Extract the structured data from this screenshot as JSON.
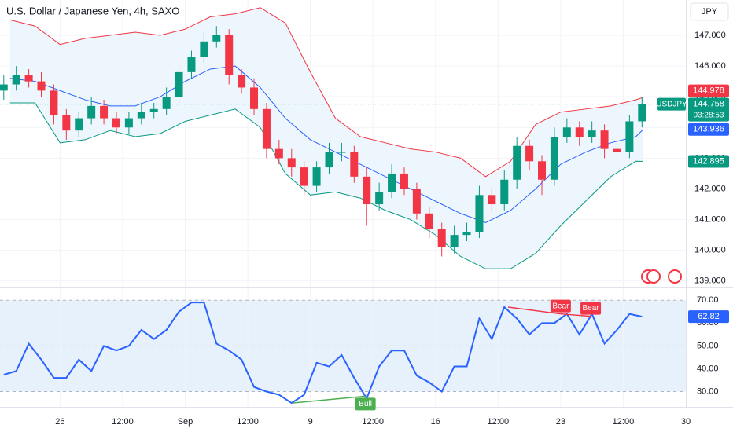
{
  "chart_data": [
    {
      "type": "candlestick",
      "title": "U.S. Dollar / Japanese Yen, 4h, SAXO",
      "symbol": "USDJPY",
      "countdown": "03:28:53",
      "currency": "JPY",
      "x": [
        -2.25,
        -1.75,
        -1.25,
        -0.75,
        -0.25,
        0.25,
        0.75,
        1.25,
        1.75,
        2.25,
        2.75,
        3.25,
        3.75,
        4.25,
        4.75,
        5.25,
        5.75,
        6.25,
        6.75,
        7.25,
        7.75,
        8.25,
        8.75,
        9.25,
        9.75,
        10.25,
        10.75,
        11.25,
        11.75,
        12.25,
        12.75,
        13.25,
        13.75,
        14.25,
        14.75,
        15.25,
        15.75,
        16.25,
        16.75,
        17.25,
        17.75,
        18.25,
        18.75,
        19.25,
        19.75,
        20.25,
        20.75,
        21.25,
        21.75,
        22.25,
        22.75,
        23.25
      ],
      "open": [
        145.2,
        145.4,
        145.7,
        145.5,
        145.2,
        144.4,
        143.9,
        144.3,
        144.7,
        144.3,
        144.0,
        144.3,
        144.5,
        144.6,
        145.0,
        145.8,
        146.3,
        146.8,
        147.0,
        145.7,
        145.3,
        144.6,
        143.3,
        143.0,
        142.7,
        142.1,
        142.7,
        143.2,
        143.2,
        142.4,
        141.5,
        141.9,
        142.5,
        142.0,
        141.2,
        140.7,
        140.1,
        140.5,
        140.6,
        141.8,
        141.5,
        142.3,
        143.4,
        142.9,
        142.3,
        143.7,
        144.0,
        143.7,
        143.9,
        143.3,
        143.2,
        144.2
      ],
      "high": [
        145.7,
        146.0,
        145.9,
        145.8,
        145.4,
        144.6,
        144.5,
        145.0,
        144.9,
        144.5,
        144.5,
        144.8,
        144.8,
        145.3,
        146.1,
        146.5,
        147.1,
        147.3,
        147.2,
        145.9,
        145.6,
        144.8,
        143.6,
        143.3,
        142.9,
        142.9,
        143.5,
        143.5,
        143.4,
        142.7,
        142.2,
        142.8,
        142.7,
        142.2,
        141.4,
        140.9,
        140.8,
        140.9,
        142.1,
        142.0,
        142.6,
        143.7,
        143.6,
        143.1,
        144.0,
        144.3,
        144.2,
        144.2,
        144.1,
        143.6,
        144.4,
        145.0
      ],
      "low": [
        144.9,
        145.2,
        145.3,
        145.0,
        144.1,
        143.6,
        143.7,
        144.1,
        144.1,
        143.8,
        143.8,
        144.1,
        144.3,
        144.4,
        144.8,
        145.6,
        146.1,
        146.6,
        145.4,
        145.1,
        144.4,
        143.0,
        142.8,
        142.4,
        141.8,
        141.9,
        142.5,
        142.9,
        142.2,
        140.8,
        141.3,
        141.7,
        141.8,
        141.0,
        140.4,
        139.8,
        139.9,
        140.3,
        140.4,
        141.3,
        141.3,
        142.0,
        142.6,
        141.8,
        142.1,
        143.5,
        143.4,
        143.5,
        143.0,
        142.9,
        143.0,
        144.0
      ],
      "close": [
        145.4,
        145.7,
        145.5,
        145.2,
        144.4,
        143.9,
        144.3,
        144.7,
        144.3,
        144.0,
        144.3,
        144.5,
        144.6,
        145.0,
        145.8,
        146.3,
        146.8,
        147.0,
        145.7,
        145.3,
        144.6,
        143.3,
        143.0,
        142.7,
        142.1,
        142.7,
        143.2,
        143.2,
        142.4,
        141.5,
        141.9,
        142.5,
        142.0,
        141.2,
        140.7,
        140.1,
        140.5,
        140.6,
        141.8,
        141.5,
        142.3,
        143.4,
        142.9,
        142.3,
        143.7,
        144.0,
        143.7,
        143.9,
        143.3,
        143.2,
        144.2,
        144.758
      ],
      "up_color": "#089981",
      "down_color": "#f23645",
      "bands": {
        "x": [
          -2,
          -1,
          0,
          1,
          2,
          3,
          4,
          5,
          6,
          7,
          8,
          9,
          10,
          11,
          12,
          13,
          14,
          15,
          16,
          17,
          18,
          19,
          20,
          21,
          22,
          23,
          23.3
        ],
        "fill": "#eef6fd",
        "upper": {
          "color": "#f23645",
          "values": [
            147.5,
            147.3,
            146.7,
            146.9,
            147.0,
            147.1,
            147.0,
            147.2,
            147.6,
            147.7,
            147.9,
            147.4,
            145.8,
            144.3,
            143.7,
            143.5,
            143.3,
            143.2,
            143.0,
            142.4,
            142.9,
            144.1,
            144.5,
            144.6,
            144.7,
            144.9,
            144.978
          ]
        },
        "middle": {
          "color": "#2962ff",
          "values": [
            145.6,
            145.5,
            145.2,
            144.9,
            144.7,
            144.7,
            145.0,
            145.5,
            145.9,
            146.0,
            145.3,
            144.3,
            143.6,
            143.2,
            142.8,
            142.4,
            142.0,
            141.6,
            141.2,
            140.9,
            141.3,
            142.0,
            142.8,
            143.2,
            143.5,
            143.7,
            143.936
          ]
        },
        "lower": {
          "color": "#089981",
          "values": [
            144.8,
            144.8,
            143.5,
            143.6,
            143.9,
            143.7,
            143.8,
            144.2,
            144.4,
            144.6,
            144.0,
            142.5,
            141.8,
            141.9,
            141.7,
            141.3,
            141.0,
            140.5,
            139.8,
            139.4,
            139.4,
            139.9,
            140.8,
            141.6,
            142.4,
            142.9,
            142.895
          ]
        }
      },
      "xlim": [
        -2.4,
        25
      ],
      "ylim": [
        138.79,
        148.15
      ],
      "yticks": [
        {
          "value": 139,
          "label": "139.000"
        },
        {
          "value": 140,
          "label": "140.000"
        },
        {
          "value": 141,
          "label": "141.000"
        },
        {
          "value": 142,
          "label": "142.000"
        },
        {
          "value": 143,
          "label": "143.000"
        },
        {
          "value": 144,
          "label": "144.000"
        },
        {
          "value": 145,
          "label": "145.000"
        },
        {
          "value": 146,
          "label": "146.000"
        },
        {
          "value": 147,
          "label": "147.000"
        }
      ],
      "grid": true
    },
    {
      "type": "line",
      "color": "#2962ff",
      "band_color": "#e6f1fc",
      "values": [
        37.4,
        39,
        51,
        44,
        36,
        36,
        44,
        39,
        50,
        48,
        50,
        57,
        53,
        57,
        65,
        69,
        69,
        51,
        48,
        44,
        32,
        30,
        28.6,
        25,
        28.6,
        42.6,
        41,
        46,
        36,
        27,
        41,
        48,
        48,
        37,
        34,
        30,
        41,
        41,
        62,
        53,
        67,
        62,
        55,
        60,
        60,
        64,
        55,
        64,
        51,
        57,
        64,
        62.82
      ],
      "xlim": [
        -2.4,
        25
      ],
      "ylim": [
        23.3,
        74.9
      ],
      "yticks": [
        {
          "value": 30,
          "label": "30.00"
        },
        {
          "value": 40,
          "label": "40.00"
        },
        {
          "value": 50,
          "label": "50.00"
        },
        {
          "value": 60,
          "label": "60.00"
        },
        {
          "value": 70,
          "label": "70.00"
        }
      ],
      "xticks": [
        {
          "value": 0,
          "label": "26"
        },
        {
          "value": 2.5,
          "label": "12:00"
        },
        {
          "value": 5,
          "label": "Sep"
        },
        {
          "value": 7.5,
          "label": "12:00"
        },
        {
          "value": 10,
          "label": "9"
        },
        {
          "value": 12.5,
          "label": "12:00"
        },
        {
          "value": 15,
          "label": "16"
        },
        {
          "value": 17.5,
          "label": "12:00"
        },
        {
          "value": 20,
          "label": "23"
        },
        {
          "value": 22.5,
          "label": "12:00"
        },
        {
          "value": 25,
          "label": "30"
        }
      ],
      "divergences": [
        {
          "label": "Bull",
          "color": "#4caf50",
          "x": [
            9.3,
            12.2
          ],
          "y": [
            25,
            28
          ]
        },
        {
          "label": "Bear",
          "color": "#f23645",
          "x": [
            17.9,
            20.0
          ],
          "y": [
            67,
            64
          ]
        },
        {
          "label": "Bear",
          "color": "#f23645",
          "x": [
            20.0,
            21.2
          ],
          "y": [
            64,
            63
          ]
        }
      ]
    }
  ]
}
